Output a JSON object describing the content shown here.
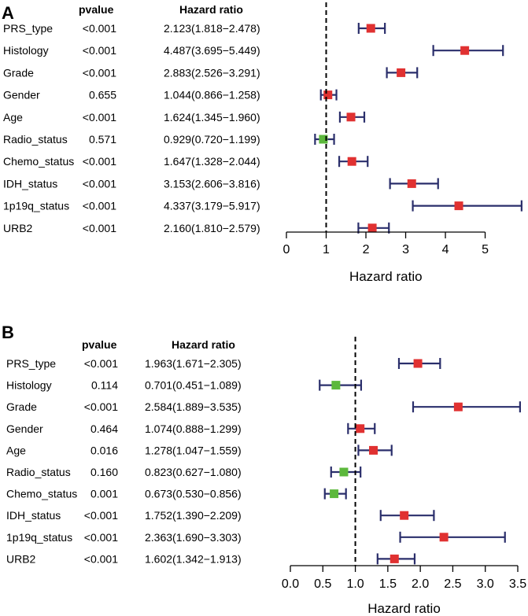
{
  "colors": {
    "significant": "#e03131",
    "nonsignificant": "#5cb83c",
    "whisker": "#2a2e6b",
    "axis": "#000000"
  },
  "chart_data": [
    {
      "type": "forest",
      "panel_label": "A",
      "col_pvalue": "pvalue",
      "col_hr": "Hazard ratio",
      "xlabel": "Hazard ratio",
      "xlim": [
        0,
        5.9
      ],
      "ticks": [
        0,
        1,
        2,
        3,
        4,
        5
      ],
      "tick_labels": [
        "0",
        "1",
        "2",
        "3",
        "4",
        "5"
      ],
      "reference_line": 1,
      "rows": [
        {
          "name": "PRS_type",
          "pvalue": "<0.001",
          "hr_text": "2.123(1.818−2.478)",
          "hr": 2.123,
          "low": 1.818,
          "high": 2.478,
          "significant": true
        },
        {
          "name": "Histology",
          "pvalue": "<0.001",
          "hr_text": "4.487(3.695−5.449)",
          "hr": 4.487,
          "low": 3.695,
          "high": 5.449,
          "significant": true
        },
        {
          "name": "Grade",
          "pvalue": "<0.001",
          "hr_text": "2.883(2.526−3.291)",
          "hr": 2.883,
          "low": 2.526,
          "high": 3.291,
          "significant": true
        },
        {
          "name": "Gender",
          "pvalue": "0.655",
          "hr_text": "1.044(0.866−1.258)",
          "hr": 1.044,
          "low": 0.866,
          "high": 1.258,
          "significant": true
        },
        {
          "name": "Age",
          "pvalue": "<0.001",
          "hr_text": "1.624(1.345−1.960)",
          "hr": 1.624,
          "low": 1.345,
          "high": 1.96,
          "significant": true
        },
        {
          "name": "Radio_status",
          "pvalue": "0.571",
          "hr_text": "0.929(0.720−1.199)",
          "hr": 0.929,
          "low": 0.72,
          "high": 1.199,
          "significant": false
        },
        {
          "name": "Chemo_status",
          "pvalue": "<0.001",
          "hr_text": "1.647(1.328−2.044)",
          "hr": 1.647,
          "low": 1.328,
          "high": 2.044,
          "significant": true
        },
        {
          "name": "IDH_status",
          "pvalue": "<0.001",
          "hr_text": "3.153(2.606−3.816)",
          "hr": 3.153,
          "low": 2.606,
          "high": 3.816,
          "significant": true
        },
        {
          "name": "1p19q_status",
          "pvalue": "<0.001",
          "hr_text": "4.337(3.179−5.917)",
          "hr": 4.337,
          "low": 3.179,
          "high": 5.917,
          "significant": true
        },
        {
          "name": "URB2",
          "pvalue": "<0.001",
          "hr_text": "2.160(1.810−2.579)",
          "hr": 2.16,
          "low": 1.81,
          "high": 2.579,
          "significant": true
        }
      ]
    },
    {
      "type": "forest",
      "panel_label": "B",
      "col_pvalue": "pvalue",
      "col_hr": "Hazard ratio",
      "xlabel": "Hazard ratio",
      "xlim": [
        0,
        3.5
      ],
      "ticks": [
        0,
        0.5,
        1,
        1.5,
        2,
        2.5,
        3,
        3.5
      ],
      "tick_labels": [
        "0.0",
        "0.5",
        "1.0",
        "1.5",
        "2.0",
        "2.5",
        "3.0",
        "3.5"
      ],
      "reference_line": 1,
      "rows": [
        {
          "name": "PRS_type",
          "pvalue": "<0.001",
          "hr_text": "1.963(1.671−2.305)",
          "hr": 1.963,
          "low": 1.671,
          "high": 2.305,
          "significant": true
        },
        {
          "name": "Histology",
          "pvalue": "0.114",
          "hr_text": "0.701(0.451−1.089)",
          "hr": 0.701,
          "low": 0.451,
          "high": 1.089,
          "significant": false
        },
        {
          "name": "Grade",
          "pvalue": "<0.001",
          "hr_text": "2.584(1.889−3.535)",
          "hr": 2.584,
          "low": 1.889,
          "high": 3.535,
          "significant": true
        },
        {
          "name": "Gender",
          "pvalue": "0.464",
          "hr_text": "1.074(0.888−1.299)",
          "hr": 1.074,
          "low": 0.888,
          "high": 1.299,
          "significant": true
        },
        {
          "name": "Age",
          "pvalue": "0.016",
          "hr_text": "1.278(1.047−1.559)",
          "hr": 1.278,
          "low": 1.047,
          "high": 1.559,
          "significant": true
        },
        {
          "name": "Radio_status",
          "pvalue": "0.160",
          "hr_text": "0.823(0.627−1.080)",
          "hr": 0.823,
          "low": 0.627,
          "high": 1.08,
          "significant": false
        },
        {
          "name": "Chemo_status",
          "pvalue": "0.001",
          "hr_text": "0.673(0.530−0.856)",
          "hr": 0.673,
          "low": 0.53,
          "high": 0.856,
          "significant": false
        },
        {
          "name": "IDH_status",
          "pvalue": "<0.001",
          "hr_text": "1.752(1.390−2.209)",
          "hr": 1.752,
          "low": 1.39,
          "high": 2.209,
          "significant": true
        },
        {
          "name": "1p19q_status",
          "pvalue": "<0.001",
          "hr_text": "2.363(1.690−3.303)",
          "hr": 2.363,
          "low": 1.69,
          "high": 3.303,
          "significant": true
        },
        {
          "name": "URB2",
          "pvalue": "<0.001",
          "hr_text": "1.602(1.342−1.913)",
          "hr": 1.602,
          "low": 1.342,
          "high": 1.913,
          "significant": true
        }
      ]
    }
  ]
}
